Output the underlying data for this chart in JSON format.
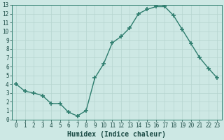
{
  "x": [
    0,
    1,
    2,
    3,
    4,
    5,
    6,
    7,
    8,
    9,
    10,
    11,
    12,
    13,
    14,
    15,
    16,
    17,
    18,
    19,
    20,
    21,
    22,
    23
  ],
  "y": [
    4.0,
    3.2,
    3.0,
    2.7,
    1.8,
    1.8,
    0.8,
    0.4,
    1.0,
    4.7,
    6.3,
    8.7,
    9.4,
    10.4,
    12.0,
    12.5,
    12.8,
    12.8,
    11.8,
    10.2,
    8.6,
    7.0,
    5.8,
    4.7
  ],
  "xlabel": "Humidex (Indice chaleur)",
  "ylim": [
    0,
    13
  ],
  "xlim": [
    -0.5,
    23.5
  ],
  "xticks": [
    0,
    1,
    2,
    3,
    4,
    5,
    6,
    7,
    8,
    9,
    10,
    11,
    12,
    13,
    14,
    15,
    16,
    17,
    18,
    19,
    20,
    21,
    22,
    23
  ],
  "yticks": [
    0,
    1,
    2,
    3,
    4,
    5,
    6,
    7,
    8,
    9,
    10,
    11,
    12,
    13
  ],
  "line_color": "#2e7d6e",
  "marker_color": "#2e7d6e",
  "bg_color": "#cde8e4",
  "grid_color": "#b5d4cf",
  "tick_label_fontsize": 5.5,
  "xlabel_fontsize": 7.0
}
